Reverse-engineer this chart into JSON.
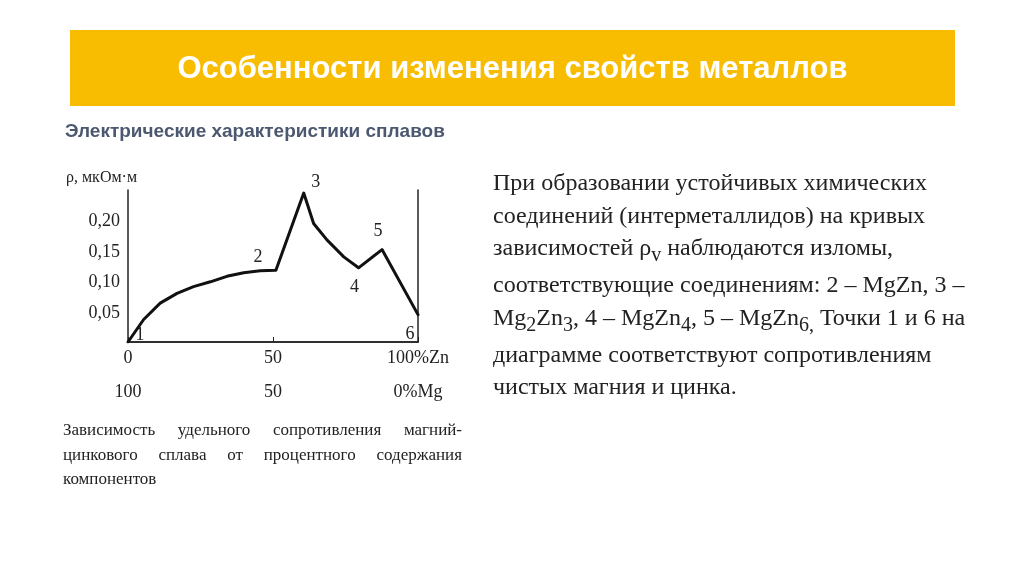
{
  "chart_data": {
    "type": "line",
    "title": "Особенности изменения свойств металлов",
    "subtitle": "Электрические характеристики сплавов",
    "ylabel": "ρ, мкОм·м",
    "x": [
      0,
      5.4,
      11.1,
      16.9,
      22.6,
      28.4,
      34.1,
      39.9,
      45.6,
      51,
      60.6,
      64,
      68.6,
      74.4,
      79.5,
      87.6,
      100
    ],
    "series": [
      {
        "color": "#111111",
        "values": [
          0,
          0.037,
          0.064,
          0.08,
          0.091,
          0.099,
          0.108,
          0.114,
          0.117,
          0.118,
          0.245,
          0.195,
          0.168,
          0.14,
          0.122,
          0.152,
          0.045
        ]
      }
    ],
    "xlim": [
      0,
      100
    ],
    "xticks": [
      0,
      50,
      {
        "value": 100,
        "label": "100%Zn"
      }
    ],
    "x2lim": [
      100,
      0
    ],
    "x2ticks": [
      100,
      50,
      {
        "value": 0,
        "label": "0%Mg"
      }
    ],
    "ylim": [
      0,
      0.25
    ],
    "yticks": [
      {
        "value": 0.05,
        "label": "0,05"
      },
      {
        "value": 0.1,
        "label": "0,10"
      },
      {
        "value": 0.15,
        "label": "0,15"
      },
      {
        "value": 0.2,
        "label": "0,20"
      }
    ],
    "grid": false,
    "marker": "none",
    "line_style": "solid",
    "annotations": [
      {
        "text": "1",
        "x": 0,
        "y": 0
      },
      {
        "text": "2",
        "x": 51,
        "y": 0.118
      },
      {
        "text": "3",
        "x": 60.6,
        "y": 0.245
      },
      {
        "text": "4",
        "x": 79.5,
        "y": 0.122
      },
      {
        "text": "5",
        "x": 87.6,
        "y": 0.152
      },
      {
        "text": "6",
        "x": 100,
        "y": 0.045
      },
      "Зависимость удельного сопротивления магний-цинкового сплава от процентного содержания компонентов",
      "При образовании устойчивых химических соединений (интерметаллидов) на кривых зависимостей ρ$_{v}$ наблюдаются изломы, соответствующие соединениям: 2 – MgZn, 3 – Mg$_{2}$Zn$_{3}$, 4 – MgZn$_{4}$, 5 – MgZn$_{6,}$ Точки 1 и 6 на диаграмме соответствуют сопротивлениям чистых магния и цинка."
    ]
  }
}
